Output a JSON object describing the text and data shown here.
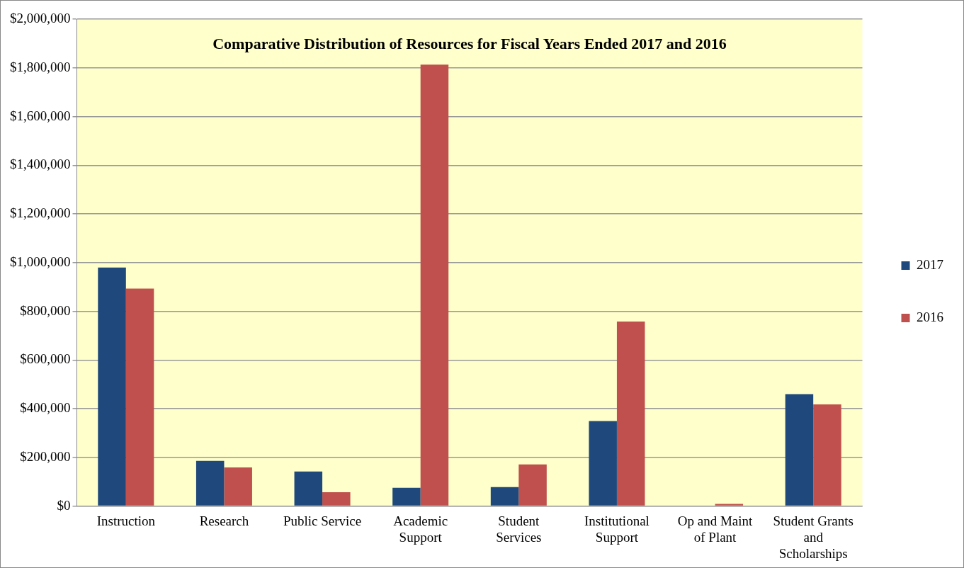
{
  "chart_data": {
    "type": "bar",
    "title": "Comparative Distribution of Resources for Fiscal Years Ended 2017 and 2016",
    "categories": [
      "Instruction",
      "Research",
      "Public Service",
      "Academic Support",
      "Student Services",
      "Institutional Support",
      "Op and Maint of Plant",
      "Student Grants and Scholarships"
    ],
    "series": [
      {
        "name": "2017",
        "color": "#1f497d",
        "values": [
          980000,
          186000,
          142000,
          75000,
          78000,
          349000,
          0,
          460000
        ]
      },
      {
        "name": "2016",
        "color": "#c0504d",
        "values": [
          893000,
          159000,
          57000,
          1813000,
          171000,
          758000,
          9000,
          418000
        ]
      }
    ],
    "ylim": [
      0,
      2000000
    ],
    "yticks": [
      {
        "value": 0,
        "label": "$0"
      },
      {
        "value": 200000,
        "label": "$200,000"
      },
      {
        "value": 400000,
        "label": "$400,000"
      },
      {
        "value": 600000,
        "label": "$600,000"
      },
      {
        "value": 800000,
        "label": "$800,000"
      },
      {
        "value": 1000000,
        "label": "$1,000,000"
      },
      {
        "value": 1200000,
        "label": "$1,200,000"
      },
      {
        "value": 1400000,
        "label": "$1,400,000"
      },
      {
        "value": 1600000,
        "label": "$1,600,000"
      },
      {
        "value": 1800000,
        "label": "$1,800,000"
      },
      {
        "value": 2000000,
        "label": "$2,000,000"
      }
    ],
    "grid": "y",
    "legend": "right"
  }
}
